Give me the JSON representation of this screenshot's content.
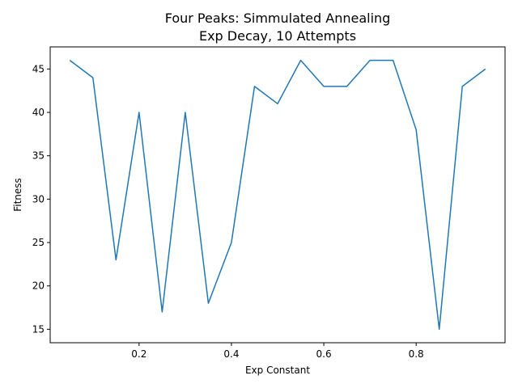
{
  "chart_data": {
    "type": "line",
    "title_line1": "Four Peaks: Simmulated Annealing",
    "title_line2": "Exp Decay, 10 Attempts",
    "xlabel": "Exp Constant",
    "ylabel": "Fitness",
    "xlim": [
      0.0075,
      0.9925
    ],
    "ylim": [
      13.45,
      47.55
    ],
    "xticks": [
      0.2,
      0.4,
      0.6,
      0.8
    ],
    "xtick_labels": [
      "0.2",
      "0.4",
      "0.6",
      "0.8"
    ],
    "yticks": [
      15,
      20,
      25,
      30,
      35,
      40,
      45
    ],
    "ytick_labels": [
      "15",
      "20",
      "25",
      "30",
      "35",
      "40",
      "45"
    ],
    "grid": false,
    "series": [
      {
        "color": "#1f77b4",
        "x": [
          0.05,
          0.1,
          0.15,
          0.2,
          0.25,
          0.3,
          0.35,
          0.4,
          0.45,
          0.5,
          0.55,
          0.6,
          0.65,
          0.7,
          0.75,
          0.8,
          0.85,
          0.9,
          0.95
        ],
        "y": [
          46,
          44,
          23,
          40,
          17,
          40,
          18,
          25,
          43,
          41,
          46,
          43,
          43,
          46,
          46,
          38,
          15,
          43,
          45
        ]
      }
    ]
  }
}
